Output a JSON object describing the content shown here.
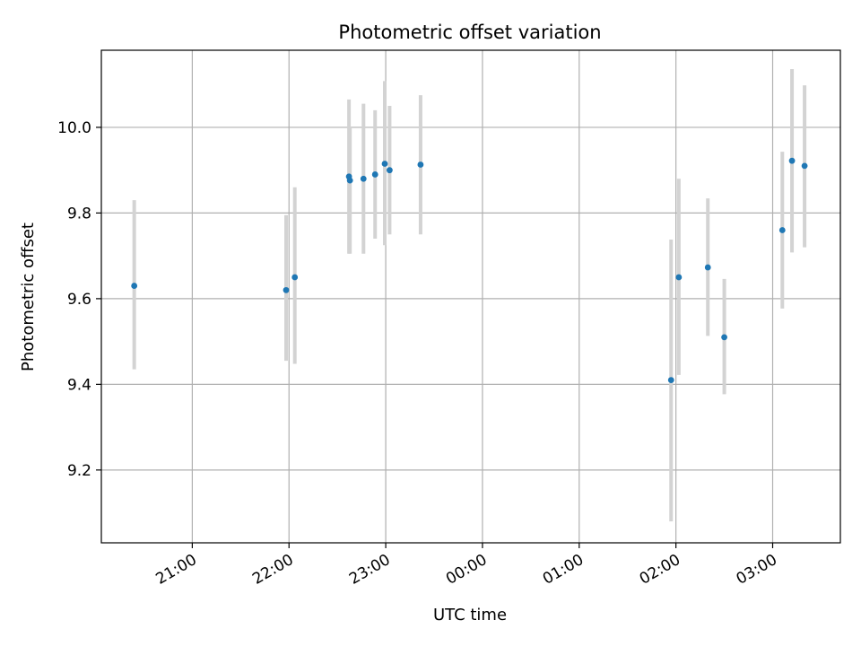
{
  "chart_data": {
    "type": "scatter",
    "title": "Photometric offset variation",
    "xlabel": "UTC time",
    "ylabel": "Photometric offset",
    "x_tick_labels": [
      "21:00",
      "22:00",
      "23:00",
      "00:00",
      "01:00",
      "02:00",
      "03:00"
    ],
    "x_ticks_hours": [
      21,
      22,
      23,
      24,
      25,
      26,
      27
    ],
    "y_tick_labels": [
      "9.2",
      "9.4",
      "9.6",
      "9.8",
      "10.0"
    ],
    "y_ticks": [
      9.2,
      9.4,
      9.6,
      9.8,
      10.0
    ],
    "xlim_hours": [
      20.06,
      27.7
    ],
    "ylim": [
      9.03,
      10.18
    ],
    "grid": true,
    "x_unit": "hours since 00:00 UTC of the first night",
    "points": [
      {
        "t": 20.4,
        "y": 9.63,
        "lo": 9.435,
        "hi": 9.83
      },
      {
        "t": 21.97,
        "y": 9.62,
        "lo": 9.455,
        "hi": 9.795
      },
      {
        "t": 22.06,
        "y": 9.65,
        "lo": 9.448,
        "hi": 9.86
      },
      {
        "t": 22.62,
        "y": 9.885,
        "lo": 9.705,
        "hi": 10.065
      },
      {
        "t": 22.63,
        "y": 9.876,
        "lo": 9.705,
        "hi": 10.0
      },
      {
        "t": 22.77,
        "y": 9.88,
        "lo": 9.705,
        "hi": 10.055
      },
      {
        "t": 22.89,
        "y": 9.89,
        "lo": 9.74,
        "hi": 10.04
      },
      {
        "t": 22.99,
        "y": 9.915,
        "lo": 9.725,
        "hi": 10.108
      },
      {
        "t": 23.04,
        "y": 9.9,
        "lo": 9.75,
        "hi": 10.05
      },
      {
        "t": 23.36,
        "y": 9.913,
        "lo": 9.75,
        "hi": 10.075
      },
      {
        "t": 25.95,
        "y": 9.41,
        "lo": 9.08,
        "hi": 9.738
      },
      {
        "t": 26.03,
        "y": 9.65,
        "lo": 9.422,
        "hi": 9.88
      },
      {
        "t": 26.33,
        "y": 9.673,
        "lo": 9.513,
        "hi": 9.834
      },
      {
        "t": 26.5,
        "y": 9.51,
        "lo": 9.377,
        "hi": 9.646
      },
      {
        "t": 27.1,
        "y": 9.76,
        "lo": 9.577,
        "hi": 9.943
      },
      {
        "t": 27.2,
        "y": 9.922,
        "lo": 9.708,
        "hi": 10.136
      },
      {
        "t": 27.33,
        "y": 9.91,
        "lo": 9.72,
        "hi": 10.098
      }
    ],
    "colors": {
      "point": "#1f77b4",
      "errorbar": "#d3d3d3",
      "grid": "#b0b0b0",
      "axes": "#000000"
    }
  }
}
